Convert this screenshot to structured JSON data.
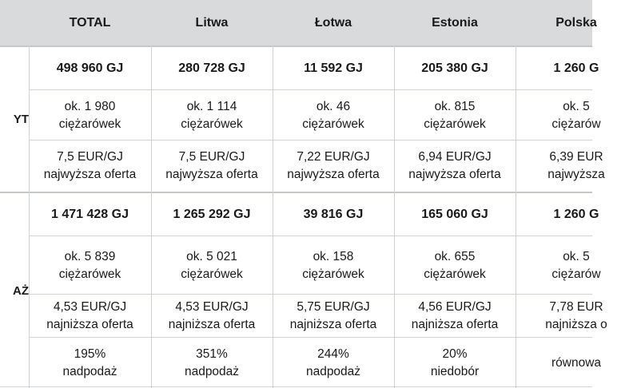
{
  "header": {
    "columns": [
      "TOTAL",
      "Litwa",
      "Łotwa",
      "Estonia",
      "Polska"
    ]
  },
  "sections": [
    {
      "label": "YT",
      "rows": [
        {
          "type": "volume",
          "cells": [
            [
              "498 960 GJ"
            ],
            [
              "280 728 GJ"
            ],
            [
              "11 592 GJ"
            ],
            [
              "205 380 GJ"
            ],
            [
              "1 260 G"
            ]
          ]
        },
        {
          "type": "trucks",
          "cells": [
            [
              "ok. 1 980",
              "ciężarówek"
            ],
            [
              "ok. 1 114",
              "ciężarówek"
            ],
            [
              "ok. 46",
              "ciężarówek"
            ],
            [
              "ok. 815",
              "ciężarówek"
            ],
            [
              "ok. 5",
              "ciężarów"
            ]
          ]
        },
        {
          "type": "price",
          "cells": [
            [
              "7,5 EUR/GJ",
              "najwyższa oferta"
            ],
            [
              "7,5 EUR/GJ",
              "najwyższa oferta"
            ],
            [
              "7,22 EUR/GJ",
              "najwyższa oferta"
            ],
            [
              "6,94 EUR/GJ",
              "najwyższa oferta"
            ],
            [
              "6,39 EUR",
              "najwyższa"
            ]
          ]
        }
      ]
    },
    {
      "label": "AŻ",
      "rows": [
        {
          "type": "volume",
          "cells": [
            [
              "1 471 428 GJ"
            ],
            [
              "1 265 292 GJ"
            ],
            [
              "39 816 GJ"
            ],
            [
              "165 060 GJ"
            ],
            [
              "1 260 G"
            ]
          ]
        },
        {
          "type": "trucks",
          "cells": [
            [
              "ok. 5 839",
              "ciężarówek"
            ],
            [
              "ok. 5 021",
              "ciężarówek"
            ],
            [
              "ok. 158",
              "ciężarówek"
            ],
            [
              "ok. 655",
              "ciężarówek"
            ],
            [
              "ok. 5",
              "ciężarów"
            ]
          ]
        },
        {
          "type": "price",
          "cells": [
            [
              "4,53 EUR/GJ",
              "najniższa oferta"
            ],
            [
              "4,53 EUR/GJ",
              "najniższa oferta"
            ],
            [
              "5,75 EUR/GJ",
              "najniższa oferta"
            ],
            [
              "4,56 EUR/GJ",
              "najniższa oferta"
            ],
            [
              "7,78 EUR",
              "najniższa o"
            ]
          ]
        },
        {
          "type": "balance",
          "cells": [
            [
              "195%",
              "nadpodaż"
            ],
            [
              "351%",
              "nadpodaż"
            ],
            [
              "244%",
              "nadpodaż"
            ],
            [
              "20%",
              "niedobór"
            ],
            [
              "równowa"
            ]
          ]
        }
      ]
    }
  ]
}
